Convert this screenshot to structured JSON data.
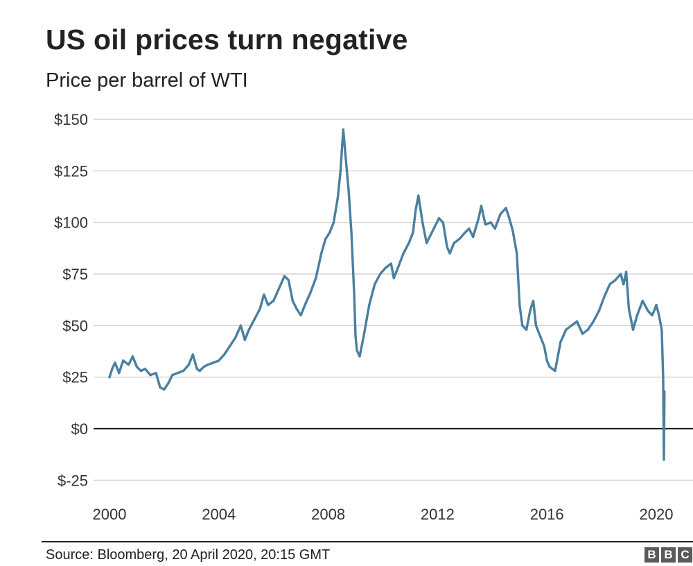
{
  "chart_data": {
    "type": "line",
    "title": "US oil prices turn negative",
    "subtitle": "Price per barrel of WTI",
    "xlabel": "",
    "ylabel": "",
    "y_ticks": [
      150,
      125,
      100,
      75,
      50,
      25,
      0,
      -25
    ],
    "y_tick_labels": [
      "$150",
      "$125",
      "$100",
      "$75",
      "$50",
      "$25",
      "$0",
      "$-25"
    ],
    "x_ticks": [
      2000,
      2004,
      2008,
      2012,
      2016,
      2020
    ],
    "x_tick_labels": [
      "2000",
      "2004",
      "2008",
      "2012",
      "2016",
      "2020"
    ],
    "xlim": [
      2000,
      2020.4
    ],
    "ylim": [
      -25,
      150
    ],
    "grid": true,
    "series": [
      {
        "color": "#4a7fa0",
        "x": [
          2000.0,
          2000.1,
          2000.2,
          2000.35,
          2000.5,
          2000.7,
          2000.85,
          2001.0,
          2001.15,
          2001.3,
          2001.5,
          2001.7,
          2001.85,
          2002.0,
          2002.15,
          2002.3,
          2002.5,
          2002.7,
          2002.9,
          2003.05,
          2003.2,
          2003.3,
          2003.45,
          2003.6,
          2003.8,
          2004.0,
          2004.2,
          2004.4,
          2004.6,
          2004.8,
          2004.95,
          2005.1,
          2005.3,
          2005.5,
          2005.65,
          2005.8,
          2006.0,
          2006.2,
          2006.4,
          2006.55,
          2006.7,
          2006.85,
          2007.0,
          2007.15,
          2007.35,
          2007.55,
          2007.75,
          2007.9,
          2008.05,
          2008.2,
          2008.35,
          2008.45,
          2008.5,
          2008.55,
          2008.65,
          2008.75,
          2008.85,
          2008.95,
          2009.0,
          2009.05,
          2009.15,
          2009.3,
          2009.5,
          2009.7,
          2009.9,
          2010.1,
          2010.3,
          2010.4,
          2010.55,
          2010.75,
          2010.95,
          2011.1,
          2011.2,
          2011.3,
          2011.45,
          2011.6,
          2011.75,
          2011.9,
          2012.05,
          2012.2,
          2012.35,
          2012.45,
          2012.6,
          2012.8,
          2013.0,
          2013.15,
          2013.3,
          2013.5,
          2013.6,
          2013.75,
          2013.95,
          2014.1,
          2014.3,
          2014.5,
          2014.6,
          2014.75,
          2014.9,
          2015.0,
          2015.1,
          2015.25,
          2015.4,
          2015.5,
          2015.6,
          2015.75,
          2015.9,
          2016.0,
          2016.1,
          2016.3,
          2016.5,
          2016.7,
          2016.9,
          2017.1,
          2017.3,
          2017.5,
          2017.7,
          2017.9,
          2018.1,
          2018.3,
          2018.5,
          2018.7,
          2018.8,
          2018.9,
          2019.0,
          2019.15,
          2019.3,
          2019.5,
          2019.7,
          2019.85,
          2019.95,
          2020.0,
          2020.1,
          2020.2,
          2020.25,
          2020.28,
          2020.3
        ],
        "y": [
          25,
          29,
          32,
          27,
          33,
          31,
          35,
          30,
          28,
          29,
          26,
          27,
          20,
          19,
          22,
          26,
          27,
          28,
          31,
          36,
          29,
          28,
          30,
          31,
          32,
          33,
          36,
          40,
          44,
          50,
          43,
          48,
          53,
          58,
          65,
          60,
          62,
          68,
          74,
          72,
          62,
          58,
          55,
          60,
          66,
          73,
          85,
          92,
          95,
          100,
          112,
          125,
          135,
          145,
          130,
          115,
          95,
          65,
          45,
          38,
          35,
          45,
          60,
          70,
          75,
          78,
          80,
          73,
          78,
          85,
          90,
          95,
          106,
          113,
          100,
          90,
          94,
          98,
          102,
          100,
          88,
          85,
          90,
          92,
          95,
          97,
          93,
          102,
          108,
          99,
          100,
          97,
          104,
          107,
          103,
          96,
          85,
          60,
          50,
          48,
          58,
          62,
          50,
          45,
          40,
          33,
          30,
          28,
          42,
          48,
          50,
          52,
          46,
          48,
          52,
          57,
          64,
          70,
          72,
          75,
          70,
          76,
          58,
          48,
          55,
          62,
          57,
          55,
          58,
          60,
          55,
          48,
          25,
          -15,
          18
        ]
      }
    ]
  },
  "footer": {
    "source": "Source: Bloomberg, 20 April 2020, 20:15 GMT",
    "logo_letters": [
      "B",
      "B",
      "C"
    ]
  }
}
